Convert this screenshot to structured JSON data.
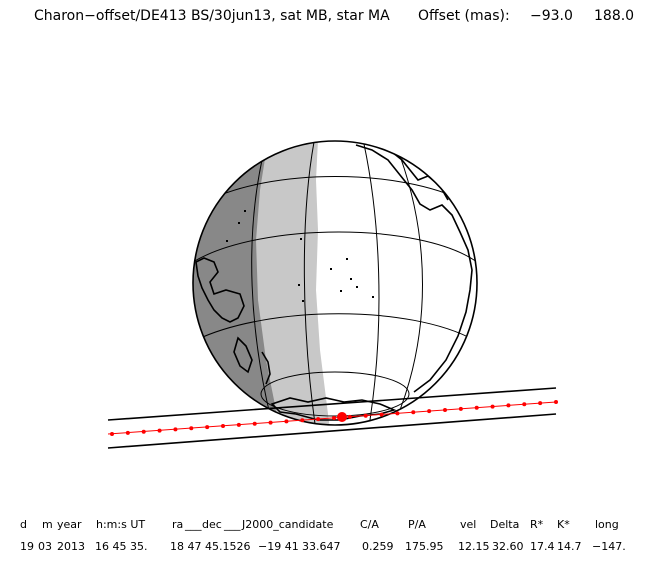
{
  "title": {
    "main": "Charon−offset/DE413 BS/30jun13, sat MB, star MA",
    "offset_label": "Offset (mas):",
    "offset_x": "−93.0",
    "offset_y": "188.0"
  },
  "map": {
    "projection": "orthographic globe",
    "colors": {
      "night": "#888888",
      "twilight": "#c8c8c8",
      "day": "#ffffff",
      "track": "#ff0000",
      "lines": "#000000"
    }
  },
  "table": {
    "headers": [
      "d",
      "m",
      "year",
      "h:m:s UT",
      "ra",
      "dec",
      "J2000_candidate",
      "C/A",
      "P/A",
      "vel",
      "Delta",
      "R*",
      "K*",
      "long"
    ],
    "header_seps": [
      "___",
      "___"
    ],
    "values": [
      "19",
      "03",
      "2013",
      "16 45 35.",
      "18 47 45.1526",
      "−19 41",
      "33.647",
      "0.259",
      "175.95",
      "12.15",
      "32.60",
      "17.4",
      "14.7",
      "−147."
    ]
  }
}
